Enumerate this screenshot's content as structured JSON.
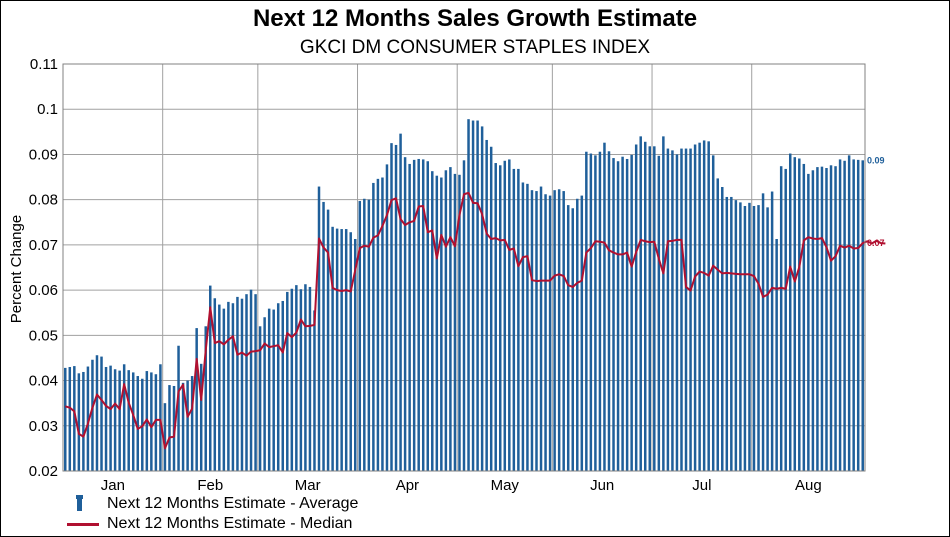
{
  "chart_data": {
    "type": "bar",
    "title": "Next 12 Months Sales Growth Estimate",
    "subtitle": "GKCI DM CONSUMER STAPLES INDEX",
    "ylabel": "Percent Change",
    "xlabel": "",
    "ylim": [
      0.02,
      0.11
    ],
    "yticks": [
      "0.02",
      "0.03",
      "0.04",
      "0.05",
      "0.06",
      "0.07",
      "0.08",
      "0.09",
      "0.1",
      "0.11"
    ],
    "x_tick_labels": [
      "Jan",
      "Feb",
      "Mar",
      "Apr",
      "May",
      "Jun",
      "Jul",
      "Aug"
    ],
    "grid": true,
    "legend_placement": "bottom-left",
    "end_labels": {
      "average": "0.09",
      "median": "0.07"
    },
    "colors": {
      "average": "#1f5f9a",
      "median": "#b01030",
      "grid": "#a0a0a0"
    },
    "series": [
      {
        "name": "Next 12 Months Estimate - Average",
        "type": "bar",
        "values": [
          0.0428,
          0.043,
          0.0432,
          0.0416,
          0.0419,
          0.0431,
          0.0446,
          0.0456,
          0.0453,
          0.043,
          0.0433,
          0.0425,
          0.0422,
          0.0436,
          0.0423,
          0.0418,
          0.041,
          0.0404,
          0.0421,
          0.0418,
          0.0414,
          0.0436,
          0.035,
          0.039,
          0.0388,
          0.0477,
          0.0395,
          0.04,
          0.041,
          0.0516,
          0.0437,
          0.052,
          0.061,
          0.0582,
          0.0568,
          0.0559,
          0.0574,
          0.0571,
          0.0585,
          0.0581,
          0.0591,
          0.0601,
          0.0591,
          0.052,
          0.054,
          0.0559,
          0.0557,
          0.0571,
          0.0576,
          0.0596,
          0.0603,
          0.0611,
          0.0602,
          0.0613,
          0.0607,
          0.0555,
          0.0829,
          0.0795,
          0.0778,
          0.074,
          0.0736,
          0.0735,
          0.0735,
          0.0728,
          0.0713,
          0.0797,
          0.0802,
          0.08,
          0.0837,
          0.0846,
          0.0849,
          0.0878,
          0.0925,
          0.0921,
          0.0946,
          0.0894,
          0.0879,
          0.0888,
          0.089,
          0.0889,
          0.0885,
          0.0863,
          0.0853,
          0.0849,
          0.0865,
          0.0872,
          0.0857,
          0.0855,
          0.0887,
          0.0978,
          0.0975,
          0.0975,
          0.0962,
          0.0932,
          0.0917,
          0.0881,
          0.0876,
          0.0886,
          0.0889,
          0.0868,
          0.0868,
          0.0838,
          0.0835,
          0.0821,
          0.0819,
          0.0829,
          0.0812,
          0.0809,
          0.0821,
          0.0823,
          0.0819,
          0.0788,
          0.0781,
          0.0802,
          0.0809,
          0.0906,
          0.0902,
          0.0898,
          0.0906,
          0.0926,
          0.0907,
          0.0892,
          0.0885,
          0.0895,
          0.089,
          0.0899,
          0.0922,
          0.094,
          0.0928,
          0.0918,
          0.0918,
          0.0897,
          0.094,
          0.0913,
          0.0909,
          0.09,
          0.0913,
          0.0913,
          0.0913,
          0.0922,
          0.0926,
          0.0931,
          0.0929,
          0.0898,
          0.0847,
          0.0828,
          0.0806,
          0.0806,
          0.0799,
          0.0794,
          0.0786,
          0.0793,
          0.0786,
          0.0788,
          0.0814,
          0.0783,
          0.0818,
          0.0713,
          0.0874,
          0.0868,
          0.0902,
          0.0894,
          0.0891,
          0.0879,
          0.0857,
          0.0865,
          0.0872,
          0.0873,
          0.087,
          0.0876,
          0.0874,
          0.0889,
          0.0886,
          0.0898,
          0.0889,
          0.0888,
          0.0887
        ]
      },
      {
        "name": "Next 12 Months Estimate - Median",
        "type": "line",
        "values": [
          0.0343,
          0.034,
          0.0332,
          0.0282,
          0.0276,
          0.0305,
          0.034,
          0.0369,
          0.0357,
          0.0344,
          0.0337,
          0.0349,
          0.0337,
          0.0392,
          0.0351,
          0.0324,
          0.0293,
          0.0299,
          0.0314,
          0.0297,
          0.0313,
          0.0313,
          0.025,
          0.0274,
          0.0276,
          0.0376,
          0.0391,
          0.032,
          0.0338,
          0.0448,
          0.0357,
          0.0467,
          0.0562,
          0.0483,
          0.0487,
          0.048,
          0.049,
          0.0498,
          0.0457,
          0.0462,
          0.0455,
          0.0464,
          0.0465,
          0.0467,
          0.0482,
          0.0474,
          0.0476,
          0.0478,
          0.0462,
          0.0505,
          0.0496,
          0.0506,
          0.0535,
          0.052,
          0.0521,
          0.0523,
          0.0714,
          0.0694,
          0.0683,
          0.0605,
          0.06,
          0.0598,
          0.06,
          0.0597,
          0.0644,
          0.0693,
          0.0698,
          0.0696,
          0.0716,
          0.0721,
          0.0742,
          0.0766,
          0.0799,
          0.0803,
          0.0757,
          0.0744,
          0.075,
          0.0753,
          0.0785,
          0.0786,
          0.0728,
          0.0732,
          0.067,
          0.0722,
          0.0696,
          0.0717,
          0.0697,
          0.0766,
          0.0812,
          0.0815,
          0.0793,
          0.0792,
          0.0768,
          0.0725,
          0.0713,
          0.0715,
          0.071,
          0.0711,
          0.0689,
          0.0692,
          0.0653,
          0.0673,
          0.0675,
          0.0622,
          0.062,
          0.0621,
          0.0621,
          0.0621,
          0.0632,
          0.0635,
          0.0631,
          0.0611,
          0.0607,
          0.0616,
          0.0621,
          0.0683,
          0.0693,
          0.0708,
          0.0707,
          0.0705,
          0.0688,
          0.0683,
          0.0679,
          0.0679,
          0.0683,
          0.0652,
          0.0684,
          0.0711,
          0.0708,
          0.0706,
          0.0707,
          0.0669,
          0.0637,
          0.0708,
          0.0709,
          0.0711,
          0.0711,
          0.0607,
          0.0599,
          0.063,
          0.0641,
          0.0638,
          0.0632,
          0.0654,
          0.0645,
          0.0637,
          0.0638,
          0.0637,
          0.0636,
          0.0635,
          0.0635,
          0.0635,
          0.0631,
          0.0614,
          0.0585,
          0.059,
          0.0605,
          0.0603,
          0.0605,
          0.0603,
          0.0652,
          0.0619,
          0.0651,
          0.071,
          0.0717,
          0.0714,
          0.0713,
          0.0715,
          0.0695,
          0.0665,
          0.0675,
          0.0698,
          0.0694,
          0.0698,
          0.0692,
          0.0693,
          0.0704,
          0.0708,
          0.0703,
          0.0709,
          0.0704,
          0.0703
        ]
      }
    ]
  }
}
